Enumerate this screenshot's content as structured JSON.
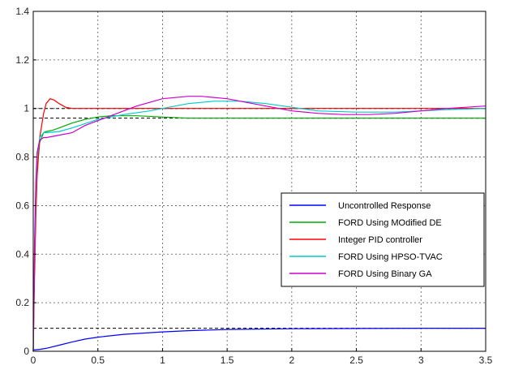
{
  "chart_data": {
    "type": "line",
    "title": "",
    "xlabel": "",
    "ylabel": "",
    "xlim": [
      0,
      3.5
    ],
    "ylim": [
      0,
      1.4
    ],
    "x_ticks": [
      "0",
      "0.5",
      "1",
      "1.5",
      "2",
      "2.5",
      "3",
      "3.5"
    ],
    "y_ticks": [
      "0",
      "0.2",
      "0.4",
      "0.6",
      "0.8",
      "1",
      "1.2",
      "1.4"
    ],
    "x_tick_values": [
      0,
      0.5,
      1,
      1.5,
      2,
      2.5,
      3,
      3.5
    ],
    "y_tick_values": [
      0,
      0.2,
      0.4,
      0.6,
      0.8,
      1.0,
      1.2,
      1.4
    ],
    "grid": true,
    "legend_position": "lower-right",
    "reference_lines": [
      {
        "y": 1.0,
        "style": "dashed",
        "color": "#000000"
      },
      {
        "y": 0.96,
        "style": "dashed",
        "color": "#000000"
      },
      {
        "y": 0.095,
        "style": "dashed",
        "color": "#000000"
      }
    ],
    "series": [
      {
        "name": "Uncontrolled Response",
        "color": "#0000ff",
        "x": [
          0,
          0.05,
          0.1,
          0.2,
          0.3,
          0.4,
          0.5,
          0.7,
          1.0,
          1.2,
          1.5,
          2.0,
          2.5,
          3.0,
          3.5
        ],
        "y": [
          0.005,
          0.008,
          0.012,
          0.025,
          0.038,
          0.05,
          0.058,
          0.07,
          0.08,
          0.085,
          0.09,
          0.093,
          0.094,
          0.095,
          0.095
        ]
      },
      {
        "name": "FORD Using MOdified DE",
        "color": "#00aa00",
        "x": [
          0,
          0.01,
          0.02,
          0.03,
          0.05,
          0.08,
          0.1,
          0.15,
          0.2,
          0.3,
          0.4,
          0.5,
          0.6,
          0.8,
          1.0,
          1.2,
          1.5,
          2.0,
          2.5,
          3.0,
          3.5
        ],
        "y": [
          0,
          0.35,
          0.6,
          0.75,
          0.86,
          0.9,
          0.905,
          0.91,
          0.92,
          0.94,
          0.955,
          0.965,
          0.97,
          0.97,
          0.965,
          0.96,
          0.96,
          0.96,
          0.96,
          0.96,
          0.96
        ]
      },
      {
        "name": "Integer PID controller",
        "color": "#ff0000",
        "x": [
          0,
          0.01,
          0.02,
          0.03,
          0.05,
          0.08,
          0.1,
          0.13,
          0.16,
          0.2,
          0.25,
          0.3,
          0.4,
          0.6,
          1.0,
          1.5,
          2.0,
          2.5,
          3.0,
          3.5
        ],
        "y": [
          0,
          0.3,
          0.55,
          0.72,
          0.88,
          0.98,
          1.02,
          1.04,
          1.035,
          1.02,
          1.005,
          1.0,
          1.0,
          1.0,
          1.0,
          1.0,
          1.0,
          1.0,
          1.0,
          1.0
        ]
      },
      {
        "name": "FORD Using HPSO-TVAC",
        "color": "#00cccc",
        "x": [
          0,
          0.01,
          0.02,
          0.03,
          0.05,
          0.08,
          0.1,
          0.2,
          0.3,
          0.5,
          0.7,
          0.9,
          1.0,
          1.2,
          1.4,
          1.6,
          1.8,
          2.0,
          2.2,
          2.5,
          2.8,
          3.0,
          3.2,
          3.5
        ],
        "y": [
          0,
          0.4,
          0.65,
          0.8,
          0.88,
          0.9,
          0.9,
          0.905,
          0.92,
          0.955,
          0.975,
          0.99,
          1.0,
          1.02,
          1.03,
          1.03,
          1.02,
          1.005,
          0.99,
          0.985,
          0.985,
          0.99,
          0.995,
          1.0
        ]
      },
      {
        "name": "FORD Using Binary GA",
        "color": "#cc00cc",
        "x": [
          0,
          0.01,
          0.02,
          0.03,
          0.05,
          0.08,
          0.1,
          0.2,
          0.3,
          0.4,
          0.5,
          0.6,
          0.8,
          1.0,
          1.2,
          1.3,
          1.5,
          1.7,
          2.0,
          2.2,
          2.4,
          2.6,
          2.8,
          3.0,
          3.2,
          3.5
        ],
        "y": [
          0,
          0.45,
          0.7,
          0.82,
          0.87,
          0.88,
          0.88,
          0.89,
          0.9,
          0.93,
          0.95,
          0.97,
          1.01,
          1.04,
          1.05,
          1.05,
          1.04,
          1.02,
          0.99,
          0.98,
          0.975,
          0.975,
          0.98,
          0.99,
          1.0,
          1.01
        ]
      }
    ]
  }
}
